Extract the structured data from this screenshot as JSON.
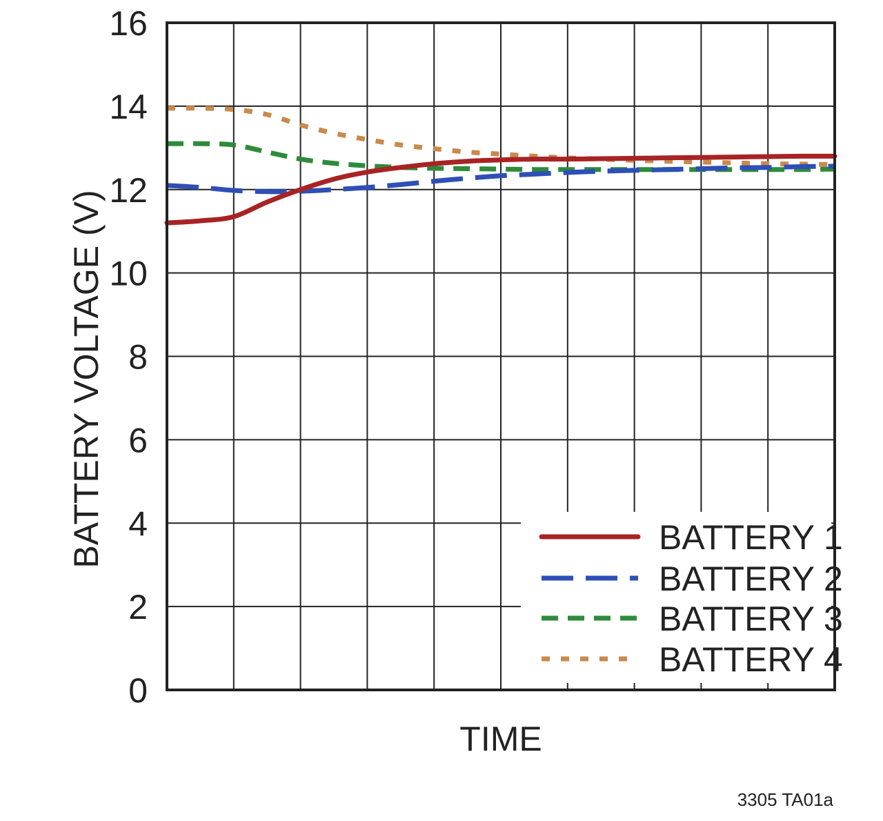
{
  "chart_data": {
    "type": "line",
    "title": "",
    "xlabel": "TIME",
    "ylabel": "BATTERY VOLTAGE (V)",
    "ylim": [
      0,
      16
    ],
    "yticks": [
      "0",
      "2",
      "4",
      "6",
      "8",
      "10",
      "12",
      "14",
      "16"
    ],
    "xlim": [
      0,
      10
    ],
    "x_divisions": 10,
    "grid": true,
    "legend_position": "bottom-right",
    "x": [
      0,
      0.5,
      1,
      1.5,
      2,
      2.5,
      3,
      3.5,
      4,
      4.5,
      5,
      5.5,
      6,
      6.5,
      7,
      7.5,
      8,
      8.5,
      9,
      9.5,
      10
    ],
    "series": [
      {
        "name": "BATTERY 1",
        "color": "#a82324",
        "dash": "solid",
        "values": [
          11.2,
          11.25,
          11.35,
          11.7,
          12.0,
          12.25,
          12.42,
          12.53,
          12.62,
          12.68,
          12.71,
          12.73,
          12.73,
          12.74,
          12.75,
          12.76,
          12.77,
          12.78,
          12.79,
          12.8,
          12.8
        ]
      },
      {
        "name": "BATTERY 2",
        "color": "#2e4fb5",
        "dash": "long-dash",
        "values": [
          12.1,
          12.05,
          11.98,
          11.95,
          11.96,
          12.0,
          12.05,
          12.12,
          12.2,
          12.27,
          12.33,
          12.37,
          12.41,
          12.44,
          12.46,
          12.48,
          12.5,
          12.52,
          12.53,
          12.55,
          12.56
        ]
      },
      {
        "name": "BATTERY 3",
        "color": "#2e8b3a",
        "dash": "short-dash",
        "values": [
          13.1,
          13.1,
          13.07,
          12.9,
          12.73,
          12.63,
          12.57,
          12.53,
          12.51,
          12.5,
          12.49,
          12.48,
          12.48,
          12.48,
          12.48,
          12.48,
          12.48,
          12.48,
          12.48,
          12.48,
          12.49
        ]
      },
      {
        "name": "BATTERY 4",
        "color": "#c98a4e",
        "dash": "dotted",
        "values": [
          13.95,
          13.95,
          13.92,
          13.8,
          13.55,
          13.35,
          13.2,
          13.07,
          12.98,
          12.9,
          12.85,
          12.8,
          12.76,
          12.73,
          12.7,
          12.68,
          12.66,
          12.64,
          12.62,
          12.61,
          12.6
        ]
      }
    ]
  },
  "footnote": "3305 TA01a"
}
